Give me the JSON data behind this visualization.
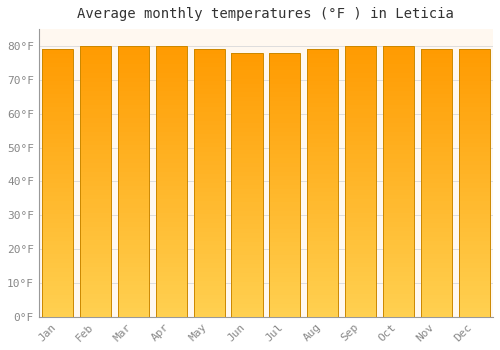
{
  "title": "Average monthly temperatures (°F ) in Leticia",
  "months": [
    "Jan",
    "Feb",
    "Mar",
    "Apr",
    "May",
    "Jun",
    "Jul",
    "Aug",
    "Sep",
    "Oct",
    "Nov",
    "Dec"
  ],
  "values": [
    79,
    80,
    80,
    80,
    79,
    78,
    78,
    79,
    80,
    80,
    79,
    79
  ],
  "ylim": [
    0,
    85
  ],
  "yticks": [
    0,
    10,
    20,
    30,
    40,
    50,
    60,
    70,
    80
  ],
  "ytick_labels": [
    "0°F",
    "10°F",
    "20°F",
    "30°F",
    "40°F",
    "50°F",
    "60°F",
    "70°F",
    "80°F"
  ],
  "bar_color_bottom": "#FFD060",
  "bar_color_top": "#FFA000",
  "bar_edge_color": "#CC8800",
  "background_color": "#FFFFFF",
  "chart_bg_color": "#FFF8F0",
  "grid_color": "#DDDDDD",
  "title_color": "#333333",
  "tick_color": "#888888",
  "title_fontsize": 10,
  "tick_fontsize": 8,
  "bar_width": 0.82
}
